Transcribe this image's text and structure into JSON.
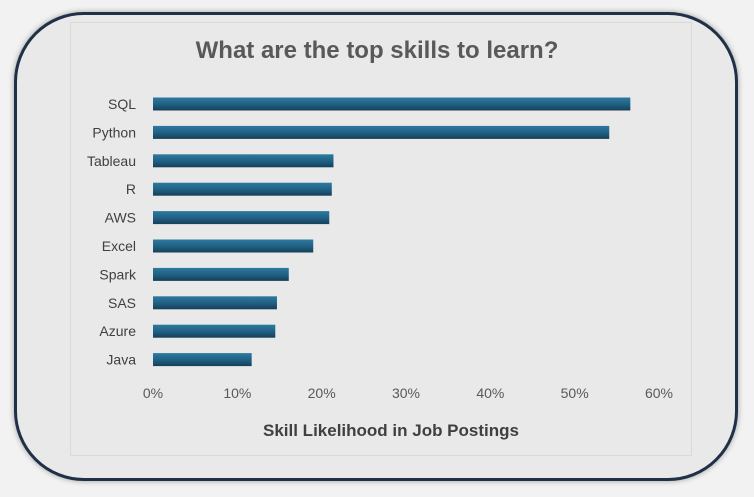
{
  "chart_data": {
    "type": "bar",
    "orientation": "horizontal",
    "title": "What are the top skills to learn?",
    "xlabel": "Skill Likelihood in Job Postings",
    "ylabel": "",
    "categories": [
      "SQL",
      "Python",
      "Tableau",
      "R",
      "AWS",
      "Excel",
      "Spark",
      "SAS",
      "Azure",
      "Java"
    ],
    "values": [
      0.566,
      0.541,
      0.214,
      0.212,
      0.209,
      0.19,
      0.161,
      0.147,
      0.145,
      0.117
    ],
    "xlim": [
      0,
      0.6
    ],
    "x_ticks": [
      "0%",
      "10%",
      "20%",
      "30%",
      "40%",
      "50%",
      "60%"
    ],
    "grid": false,
    "bar_color": "#1f5f82",
    "bar_color_dark": "#174a66"
  }
}
